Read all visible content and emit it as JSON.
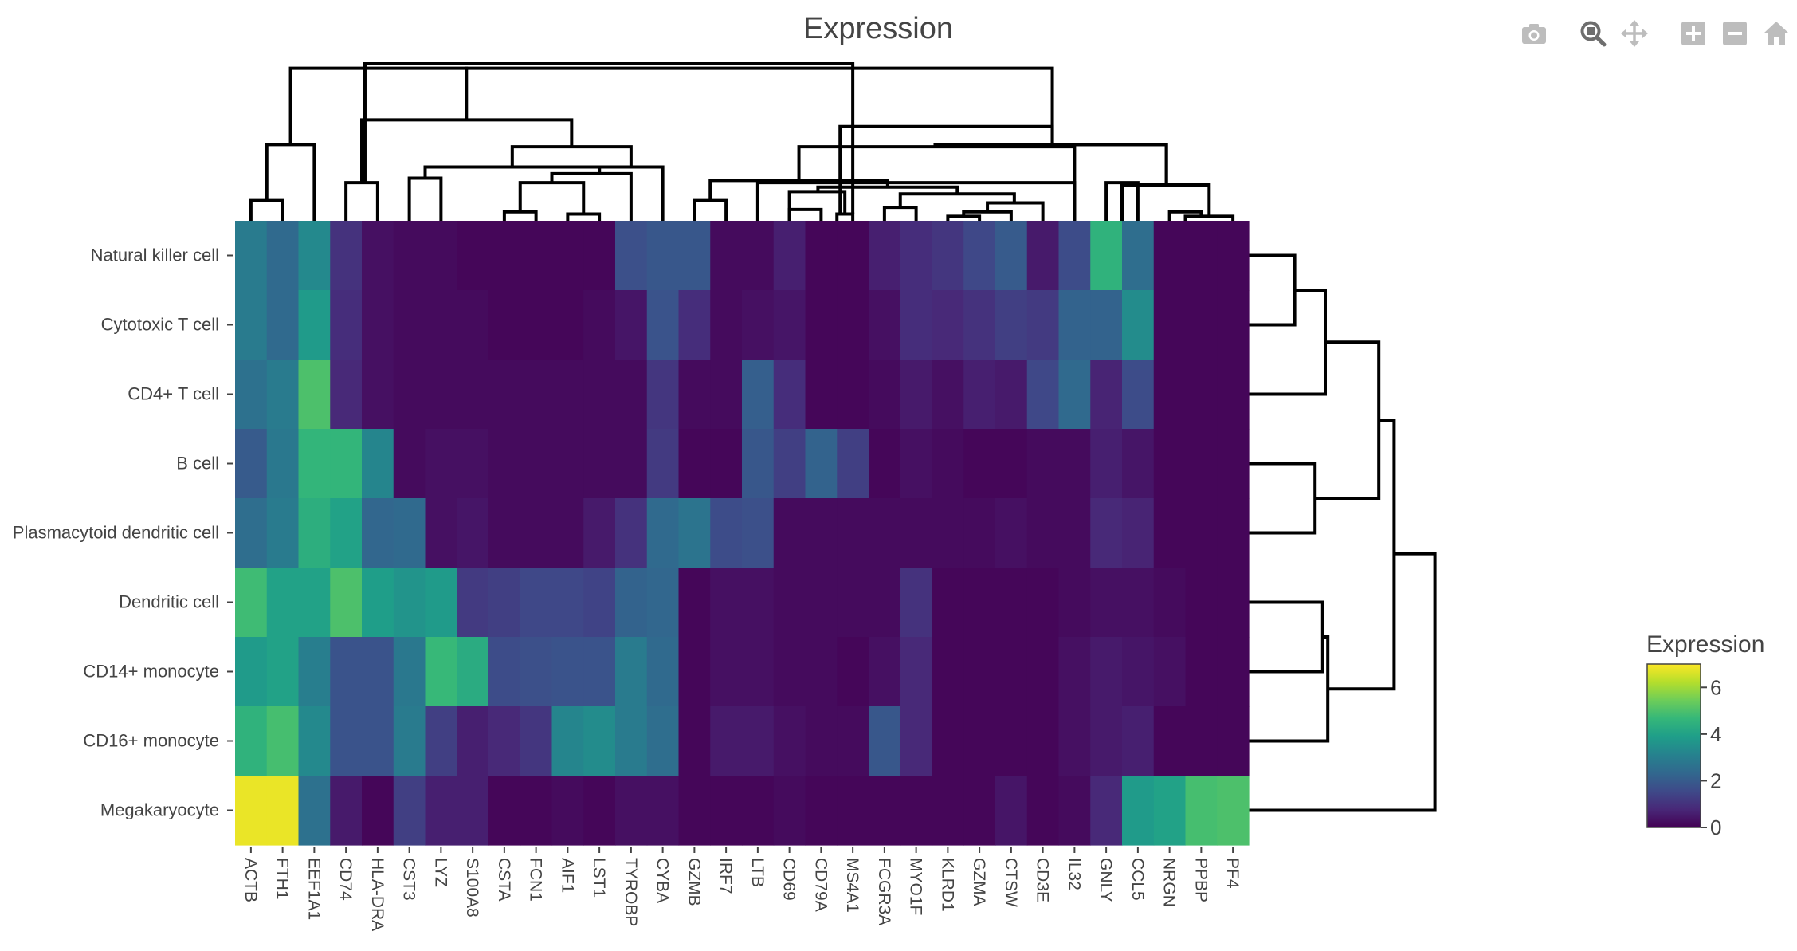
{
  "modebar": {
    "buttons": [
      {
        "name": "download-plot-button",
        "icon": "camera-icon",
        "active": false
      },
      {
        "name": "zoom-button",
        "icon": "zoom-icon",
        "active": true
      },
      {
        "name": "pan-button",
        "icon": "pan-icon",
        "active": false
      },
      {
        "name": "zoom-in-button",
        "icon": "plus-box-icon",
        "active": false
      },
      {
        "name": "zoom-out-button",
        "icon": "minus-box-icon",
        "active": false
      },
      {
        "name": "reset-axes-button",
        "icon": "home-icon",
        "active": false
      }
    ],
    "icon_color": "#bdbdbd",
    "active_color": "#6e6e6e"
  },
  "chart_data": {
    "type": "heatmap",
    "title": "Expression",
    "colorscale": "Viridis",
    "zmin": 0,
    "zmax": 7,
    "colorbar": {
      "title": "Expression",
      "ticks": [
        0,
        2,
        4,
        6
      ]
    },
    "rows": [
      "Natural killer cell",
      "Cytotoxic T cell",
      "CD4+ T cell",
      "B cell",
      "Plasmacytoid dendritic cell",
      "Dendritic cell",
      "CD14+ monocyte",
      "CD16+ monocyte",
      "Megakaryocyte"
    ],
    "columns": [
      "ACTB",
      "FTH1",
      "EEF1A1",
      "CD74",
      "HLA-DRA",
      "CST3",
      "LYZ",
      "S100A8",
      "CSTA",
      "FCN1",
      "AIF1",
      "LST1",
      "TYROBP",
      "CYBA",
      "GZMB",
      "IRF7",
      "LTB",
      "CD69",
      "CD79A",
      "MS4A1",
      "FCGR3A",
      "MYO1F",
      "KLRD1",
      "GZMA",
      "CTSW",
      "CD3E",
      "IL32",
      "GNLY",
      "CCL5",
      "NRGN",
      "PPBP",
      "PF4"
    ],
    "z": [
      [
        2.9,
        2.4,
        3.3,
        1.0,
        0.3,
        0.2,
        0.2,
        0.1,
        0.1,
        0.1,
        0.1,
        0.1,
        1.7,
        1.9,
        1.9,
        0.2,
        0.2,
        0.6,
        0.1,
        0.1,
        0.6,
        0.9,
        1.1,
        1.5,
        2.0,
        0.5,
        1.6,
        4.5,
        2.5,
        0.1,
        0.1,
        0.1
      ],
      [
        2.9,
        2.4,
        3.8,
        0.9,
        0.3,
        0.2,
        0.2,
        0.2,
        0.1,
        0.1,
        0.1,
        0.2,
        0.4,
        1.8,
        0.9,
        0.2,
        0.3,
        0.4,
        0.1,
        0.1,
        0.3,
        0.9,
        0.8,
        1.0,
        1.3,
        1.2,
        2.2,
        2.2,
        3.4,
        0.1,
        0.1,
        0.1
      ],
      [
        2.6,
        2.9,
        5.0,
        0.8,
        0.3,
        0.2,
        0.2,
        0.2,
        0.2,
        0.2,
        0.2,
        0.2,
        0.2,
        1.1,
        0.2,
        0.2,
        2.1,
        0.9,
        0.1,
        0.1,
        0.2,
        0.5,
        0.3,
        0.6,
        0.5,
        1.5,
        2.4,
        0.7,
        1.6,
        0.1,
        0.1,
        0.1
      ],
      [
        2.0,
        2.8,
        4.6,
        4.6,
        3.2,
        0.2,
        0.3,
        0.3,
        0.2,
        0.2,
        0.2,
        0.2,
        0.2,
        1.2,
        0.1,
        0.1,
        1.9,
        1.3,
        2.2,
        1.3,
        0.1,
        0.3,
        0.2,
        0.1,
        0.1,
        0.2,
        0.2,
        0.6,
        0.4,
        0.1,
        0.1,
        0.1
      ],
      [
        2.5,
        2.9,
        4.4,
        4.0,
        2.3,
        2.4,
        0.3,
        0.4,
        0.2,
        0.2,
        0.2,
        0.5,
        1.0,
        2.4,
        2.7,
        1.6,
        1.7,
        0.2,
        0.2,
        0.2,
        0.2,
        0.2,
        0.2,
        0.2,
        0.3,
        0.2,
        0.2,
        0.8,
        0.7,
        0.1,
        0.1,
        0.1
      ],
      [
        4.8,
        4.0,
        4.0,
        5.0,
        3.9,
        3.6,
        3.8,
        1.2,
        1.3,
        1.5,
        1.5,
        1.4,
        2.2,
        2.3,
        0.1,
        0.3,
        0.3,
        0.2,
        0.2,
        0.2,
        0.2,
        1.0,
        0.1,
        0.1,
        0.1,
        0.1,
        0.2,
        0.3,
        0.3,
        0.2,
        0.1,
        0.1
      ],
      [
        3.8,
        4.0,
        3.0,
        1.8,
        1.8,
        2.8,
        4.7,
        4.3,
        1.6,
        1.7,
        1.8,
        1.8,
        2.9,
        2.4,
        0.1,
        0.3,
        0.3,
        0.2,
        0.2,
        0.1,
        0.3,
        0.8,
        0.1,
        0.1,
        0.1,
        0.1,
        0.3,
        0.5,
        0.4,
        0.3,
        0.1,
        0.1
      ],
      [
        4.5,
        4.9,
        3.3,
        1.8,
        1.8,
        2.9,
        1.3,
        0.6,
        0.8,
        1.1,
        3.2,
        3.4,
        2.9,
        2.5,
        0.1,
        0.5,
        0.5,
        0.3,
        0.2,
        0.2,
        1.9,
        0.8,
        0.1,
        0.1,
        0.1,
        0.1,
        0.3,
        0.5,
        0.6,
        0.1,
        0.1,
        0.1
      ],
      [
        6.8,
        6.8,
        2.6,
        0.5,
        0.1,
        1.3,
        0.6,
        0.6,
        0.1,
        0.1,
        0.2,
        0.1,
        0.3,
        0.3,
        0.1,
        0.1,
        0.1,
        0.2,
        0.1,
        0.1,
        0.1,
        0.1,
        0.1,
        0.1,
        0.4,
        0.1,
        0.2,
        0.8,
        3.8,
        4.0,
        4.9,
        5.0
      ]
    ],
    "column_dendrogram": [
      {
        "leaves": [
          0,
          1
        ],
        "height": 0.045
      },
      {
        "leaves": [
          0.5,
          2
        ],
        "height": 0.17
      },
      {
        "leaves": [
          3,
          4
        ],
        "height": 0.085
      },
      {
        "leaves": [
          5,
          6
        ],
        "height": 0.095
      },
      {
        "leaves": [
          8,
          9
        ],
        "height": 0.02
      },
      {
        "leaves": [
          10,
          11
        ],
        "height": 0.015
      },
      {
        "leaves": [
          8.5,
          10.5
        ],
        "height": 0.085
      },
      {
        "leaves": [
          9.5,
          12
        ],
        "height": 0.105
      },
      {
        "leaves": [
          5.5,
          11
        ],
        "height": 0.12
      },
      {
        "leaves": [
          11,
          13
        ],
        "height": 0.12
      },
      {
        "leaves": [
          8.25,
          12
        ],
        "height": 0.165
      },
      {
        "leaves": [
          3.5,
          10.125
        ],
        "height": 0.225
      },
      {
        "leaves": [
          1.25,
          6.8
        ],
        "height": 0.34
      },
      {
        "leaves": [
          14,
          15
        ],
        "height": 0.045
      },
      {
        "leaves": [
          17,
          18
        ],
        "height": 0.025
      },
      {
        "leaves": [
          18.5,
          19
        ],
        "height": 0.015
      },
      {
        "leaves": [
          17,
          18.75
        ],
        "height": 0.065
      },
      {
        "leaves": [
          20,
          21
        ],
        "height": 0.03
      },
      {
        "leaves": [
          22,
          23
        ],
        "height": 0.01
      },
      {
        "leaves": [
          22.5,
          24
        ],
        "height": 0.02
      },
      {
        "leaves": [
          23.25,
          25
        ],
        "height": 0.04
      },
      {
        "leaves": [
          20.5,
          24.1
        ],
        "height": 0.06
      },
      {
        "leaves": [
          17.9,
          22.3
        ],
        "height": 0.075
      },
      {
        "leaves": [
          14.5,
          20.1
        ],
        "height": 0.09
      },
      {
        "leaves": [
          16,
          26
        ],
        "height": 0.085
      },
      {
        "leaves": [
          27,
          28
        ],
        "height": 0.085
      },
      {
        "leaves": [
          17.3,
          26
        ],
        "height": 0.165
      },
      {
        "leaves": [
          29,
          30
        ],
        "height": 0.02
      },
      {
        "leaves": [
          29.5,
          31
        ],
        "height": 0.01
      },
      {
        "leaves": [
          27.5,
          30.25
        ],
        "height": 0.08
      },
      {
        "leaves": [
          21.6,
          28.9
        ],
        "height": 0.17
      },
      {
        "leaves": [
          21.65,
          28.9
        ],
        "height": 0.17
      },
      {
        "leaves": [
          18.6,
          25.3
        ],
        "height": 0.21
      },
      {
        "leaves": [
          6.8,
          25.3
        ],
        "height": 0.34
      },
      {
        "leaves": [
          3.6,
          19.0
        ],
        "height": 0.35
      }
    ]
  }
}
